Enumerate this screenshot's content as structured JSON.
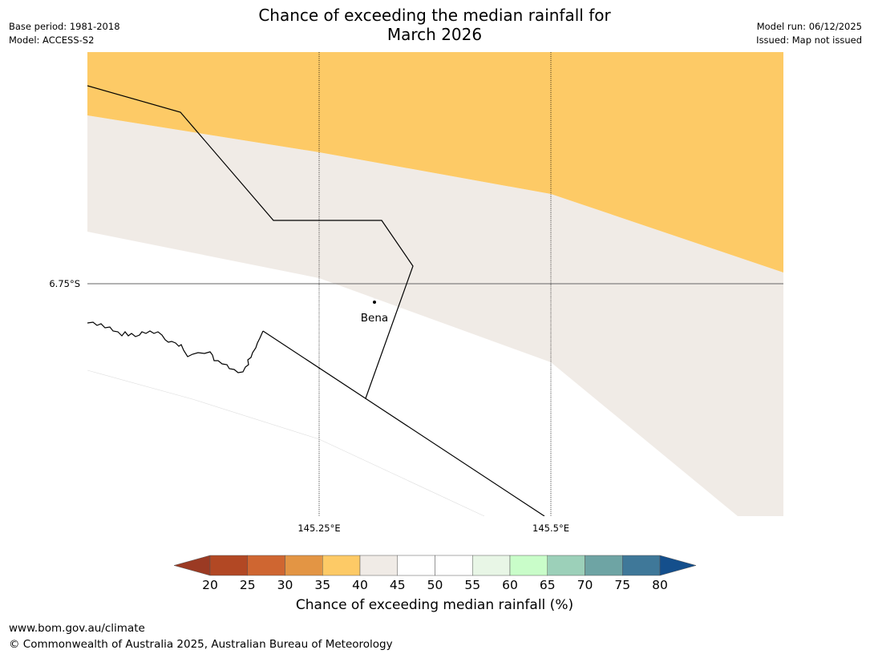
{
  "header": {
    "base_period": "Base period: 1981-2018",
    "model": "Model: ACCESS-S2",
    "title_line1": "Chance of exceeding the median rainfall for",
    "title_line2": "March 2026",
    "model_run": "Model run: 06/12/2025",
    "issued": "Issued: Map not issued"
  },
  "map": {
    "lat_labels": [
      "6.75°S"
    ],
    "lon_labels": [
      "145.25°E",
      "145.5°E"
    ],
    "place": "Bena",
    "zone_colors": {
      "35-40": "#fdca66",
      "40-45": "#f0ebe6",
      "45-55": "#ffffff"
    }
  },
  "colorbar": {
    "ticks": [
      "20",
      "25",
      "30",
      "35",
      "40",
      "45",
      "50",
      "55",
      "60",
      "65",
      "70",
      "75",
      "80"
    ],
    "colors": [
      "#9b3a23",
      "#b24824",
      "#cf6631",
      "#e39544",
      "#fdca66",
      "#f0ebe6",
      "#ffffff",
      "#ffffff",
      "#e8f6e6",
      "#c9fdc9",
      "#9cd0b9",
      "#6ea4a4",
      "#3f7899",
      "#144f8c"
    ],
    "label": "Chance of exceeding median rainfall (%)"
  },
  "footer": {
    "url": "www.bom.gov.au/climate",
    "copyright": "© Commonwealth of Australia 2025, Australian Bureau of Meteorology"
  }
}
